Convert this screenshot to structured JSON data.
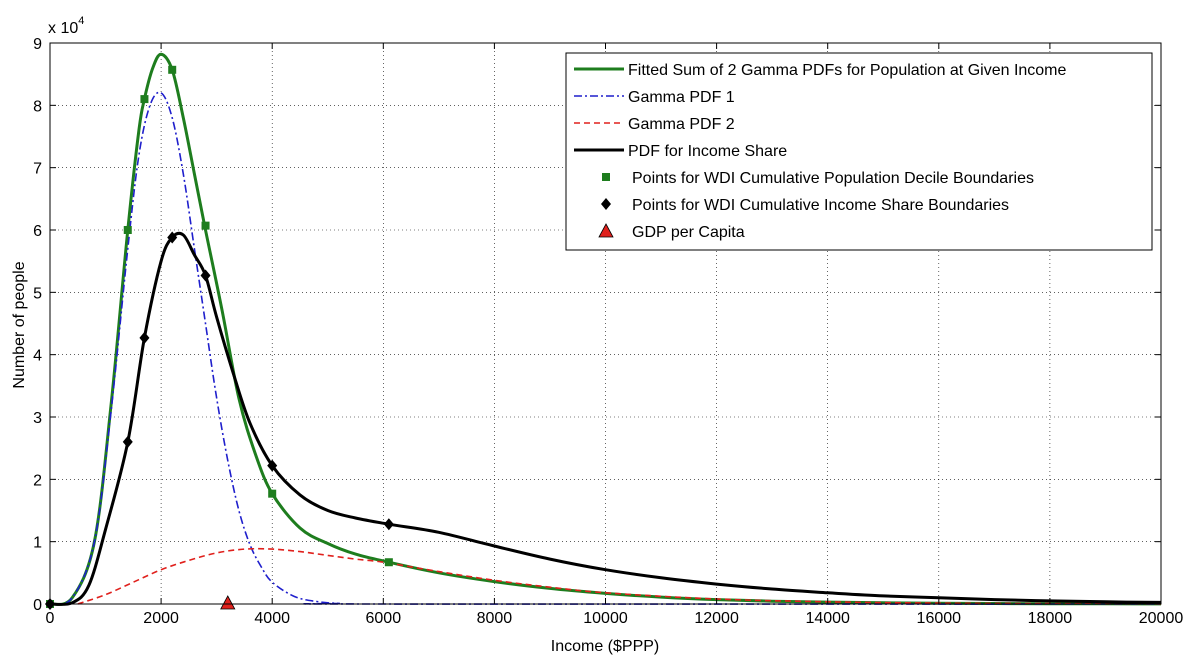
{
  "chart_data": {
    "type": "line",
    "title": "",
    "xlabel": "Income ($PPP)",
    "ylabel": "Number of people",
    "y_exponent_label": "x 10",
    "y_exponent_power": "4",
    "xlim": [
      0,
      20000
    ],
    "ylim": [
      0,
      9
    ],
    "x_ticks": [
      0,
      2000,
      4000,
      6000,
      8000,
      10000,
      12000,
      14000,
      16000,
      18000,
      20000
    ],
    "y_ticks": [
      0,
      1,
      2,
      3,
      4,
      5,
      6,
      7,
      8,
      9
    ],
    "grid": true,
    "legend_position": "top-right",
    "series": [
      {
        "name": "Fitted Sum of 2 Gamma PDFs for Population at Given Income",
        "color": "#1e7d1e",
        "style": "solid",
        "points": [
          [
            0,
            0
          ],
          [
            400,
            0.1
          ],
          [
            800,
            1.0
          ],
          [
            1100,
            3.2
          ],
          [
            1400,
            6.0
          ],
          [
            1600,
            7.6
          ],
          [
            1700,
            8.1
          ],
          [
            1850,
            8.6
          ],
          [
            2000,
            8.82
          ],
          [
            2200,
            8.57
          ],
          [
            2400,
            7.8
          ],
          [
            2600,
            6.9
          ],
          [
            2800,
            6.0
          ],
          [
            3100,
            4.7
          ],
          [
            3400,
            3.3
          ],
          [
            3700,
            2.4
          ],
          [
            4000,
            1.77
          ],
          [
            4500,
            1.22
          ],
          [
            5000,
            0.97
          ],
          [
            5500,
            0.8
          ],
          [
            6100,
            0.67
          ],
          [
            7000,
            0.5
          ],
          [
            8000,
            0.36
          ],
          [
            9000,
            0.25
          ],
          [
            10000,
            0.17
          ],
          [
            11000,
            0.11
          ],
          [
            12000,
            0.07
          ],
          [
            13000,
            0.045
          ],
          [
            14000,
            0.03
          ],
          [
            15000,
            0.02
          ],
          [
            16000,
            0.012
          ],
          [
            17000,
            0.008
          ],
          [
            18000,
            0.005
          ],
          [
            20000,
            0.002
          ]
        ]
      },
      {
        "name": "Gamma PDF 1",
        "color": "#1f1fcc",
        "style": "dashdot",
        "points": [
          [
            0,
            0
          ],
          [
            400,
            0.1
          ],
          [
            800,
            1.0
          ],
          [
            1100,
            3.1
          ],
          [
            1400,
            5.7
          ],
          [
            1600,
            7.2
          ],
          [
            1800,
            8.0
          ],
          [
            2000,
            8.2
          ],
          [
            2200,
            7.8
          ],
          [
            2400,
            6.9
          ],
          [
            2600,
            5.7
          ],
          [
            2800,
            4.5
          ],
          [
            3000,
            3.3
          ],
          [
            3200,
            2.3
          ],
          [
            3400,
            1.5
          ],
          [
            3600,
            0.95
          ],
          [
            3800,
            0.6
          ],
          [
            4000,
            0.35
          ],
          [
            4400,
            0.12
          ],
          [
            4800,
            0.04
          ],
          [
            5200,
            0.01
          ],
          [
            5800,
            0.0
          ],
          [
            20000,
            0.0
          ]
        ]
      },
      {
        "name": "Gamma PDF 2",
        "color": "#e0201c",
        "style": "dashed",
        "points": [
          [
            500,
            0
          ],
          [
            1000,
            0.15
          ],
          [
            1500,
            0.35
          ],
          [
            2000,
            0.55
          ],
          [
            2500,
            0.7
          ],
          [
            3000,
            0.82
          ],
          [
            3500,
            0.88
          ],
          [
            4000,
            0.88
          ],
          [
            4500,
            0.84
          ],
          [
            5000,
            0.78
          ],
          [
            5500,
            0.72
          ],
          [
            6000,
            0.67
          ],
          [
            7000,
            0.52
          ],
          [
            8000,
            0.38
          ],
          [
            9000,
            0.27
          ],
          [
            10000,
            0.18
          ],
          [
            12000,
            0.08
          ],
          [
            14000,
            0.035
          ],
          [
            16000,
            0.015
          ],
          [
            18000,
            0.006
          ],
          [
            20000,
            0.002
          ]
        ]
      },
      {
        "name": "PDF for Income Share",
        "color": "#000000",
        "style": "solid",
        "points": [
          [
            0,
            0
          ],
          [
            400,
            0.02
          ],
          [
            700,
            0.3
          ],
          [
            1000,
            1.2
          ],
          [
            1400,
            2.6
          ],
          [
            1700,
            4.27
          ],
          [
            2000,
            5.5
          ],
          [
            2200,
            5.88
          ],
          [
            2400,
            5.92
          ],
          [
            2600,
            5.6
          ],
          [
            2800,
            5.27
          ],
          [
            3000,
            4.6
          ],
          [
            3300,
            3.7
          ],
          [
            3600,
            2.9
          ],
          [
            4000,
            2.22
          ],
          [
            4500,
            1.75
          ],
          [
            5000,
            1.5
          ],
          [
            5500,
            1.38
          ],
          [
            6100,
            1.28
          ],
          [
            7000,
            1.15
          ],
          [
            8000,
            0.93
          ],
          [
            9000,
            0.72
          ],
          [
            10000,
            0.55
          ],
          [
            11000,
            0.42
          ],
          [
            12000,
            0.32
          ],
          [
            13000,
            0.24
          ],
          [
            14000,
            0.18
          ],
          [
            15000,
            0.13
          ],
          [
            16000,
            0.1
          ],
          [
            17000,
            0.07
          ],
          [
            18000,
            0.05
          ],
          [
            19000,
            0.035
          ],
          [
            20000,
            0.025
          ]
        ]
      }
    ],
    "markers": [
      {
        "name": "Points for WDI Cumulative Population Decile Boundaries",
        "color": "#1e7d1e",
        "shape": "square",
        "points": [
          [
            0,
            0
          ],
          [
            1400,
            6.0
          ],
          [
            1700,
            8.1
          ],
          [
            2200,
            8.57
          ],
          [
            2800,
            6.07
          ],
          [
            4000,
            1.77
          ],
          [
            6100,
            0.67
          ]
        ]
      },
      {
        "name": "Points for WDI Cumulative Income Share Boundaries",
        "color": "#000000",
        "shape": "diamond",
        "points": [
          [
            0,
            0
          ],
          [
            1400,
            2.6
          ],
          [
            1700,
            4.27
          ],
          [
            2200,
            5.88
          ],
          [
            2800,
            5.27
          ],
          [
            4000,
            2.22
          ],
          [
            6100,
            1.28
          ]
        ]
      },
      {
        "name": "GDP per  Capita",
        "color": "#e0201c",
        "shape": "triangle",
        "points": [
          [
            3200,
            0
          ]
        ]
      }
    ]
  }
}
